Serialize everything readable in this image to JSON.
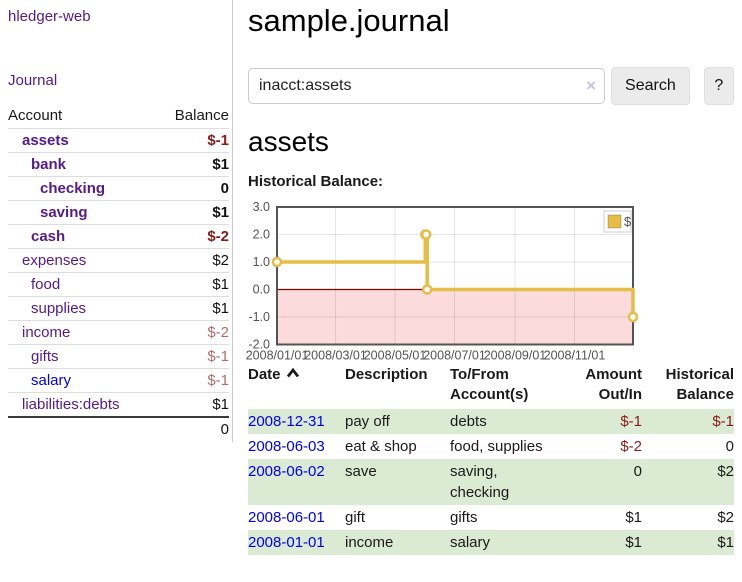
{
  "app": {
    "brand": "hledger-web"
  },
  "sidebar": {
    "journal_link": "Journal",
    "accounts": {
      "headers": [
        "Account",
        "Balance"
      ],
      "rows": [
        {
          "account": "assets",
          "indent": 1,
          "bold": true,
          "link": "purple",
          "balance": "$-1",
          "style": "neg-strong"
        },
        {
          "account": "bank",
          "indent": 2,
          "bold": true,
          "link": "purple",
          "balance": "$1",
          "style": ""
        },
        {
          "account": "checking",
          "indent": 3,
          "bold": true,
          "link": "purple",
          "balance": "0",
          "style": ""
        },
        {
          "account": "saving",
          "indent": 3,
          "bold": true,
          "link": "purple",
          "balance": "$1",
          "style": ""
        },
        {
          "account": "cash",
          "indent": 2,
          "bold": true,
          "link": "purple",
          "balance": "$-2",
          "style": "neg-strong"
        },
        {
          "account": "expenses",
          "indent": 1,
          "bold": false,
          "link": "purple",
          "balance": "$2",
          "style": ""
        },
        {
          "account": "food",
          "indent": 2,
          "bold": false,
          "link": "purple",
          "balance": "$1",
          "style": ""
        },
        {
          "account": "supplies",
          "indent": 2,
          "bold": false,
          "link": "purple",
          "balance": "$1",
          "style": ""
        },
        {
          "account": "income",
          "indent": 1,
          "bold": false,
          "link": "purple",
          "balance": "$-2",
          "style": "neg-muted"
        },
        {
          "account": "gifts",
          "indent": 2,
          "bold": false,
          "link": "purple",
          "balance": "$-1",
          "style": "neg-muted"
        },
        {
          "account": "salary",
          "indent": 2,
          "bold": false,
          "link": "blue",
          "balance": "$-1",
          "style": "neg-muted"
        },
        {
          "account": "liabilities:debts",
          "indent": 1,
          "bold": false,
          "link": "purple",
          "balance": "$1",
          "style": ""
        }
      ],
      "total": "0"
    }
  },
  "header": {
    "title": "sample.journal"
  },
  "search": {
    "value": "inacct:assets",
    "clear_icon": "×",
    "button_label": "Search",
    "help_label": "?"
  },
  "main": {
    "account_title": "assets"
  },
  "chart_data": {
    "type": "line",
    "title": "Historical Balance:",
    "series": [
      {
        "name": "$",
        "color": "#e8bd45",
        "steps": true,
        "points": [
          [
            "2008-01-01",
            1
          ],
          [
            "2008-06-01",
            2
          ],
          [
            "2008-06-02",
            2
          ],
          [
            "2008-06-03",
            0
          ],
          [
            "2008-12-31",
            -1
          ]
        ]
      }
    ],
    "xlim": [
      "2008-01-01",
      "2008-12-31"
    ],
    "ylim": [
      -2,
      3
    ],
    "x_ticks": [
      {
        "t": "2008-01-01",
        "label": "2008/01/01"
      },
      {
        "t": "2008-03-01",
        "label": "2008/03/01"
      },
      {
        "t": "2008-05-01",
        "label": "2008/05/01"
      },
      {
        "t": "2008-07-01",
        "label": "2008/07/01"
      },
      {
        "t": "2008-09-01",
        "label": "2008/09/01"
      },
      {
        "t": "2008-11-01",
        "label": "2008/11/01"
      }
    ],
    "y_ticks": [
      {
        "v": 3,
        "label": "3.0"
      },
      {
        "v": 2,
        "label": "2.0"
      },
      {
        "v": 1,
        "label": "1.0"
      },
      {
        "v": 0,
        "label": "0.0"
      },
      {
        "v": -1,
        "label": "-1.0"
      },
      {
        "v": -2,
        "label": "-2.0"
      }
    ],
    "legend": {
      "label": "$",
      "position": "top-right"
    },
    "grid": true,
    "negative_fill": "#fbdbdb",
    "zero_line_color": "#8b0000"
  },
  "register": {
    "headers": {
      "date": "Date",
      "description": "Description",
      "accounts": "To/From Account(s)",
      "amount": "Amount Out/In",
      "balance": "Historical Balance"
    },
    "sort": "ascending",
    "rows": [
      {
        "date": "2008-12-31",
        "description": "pay off",
        "accounts": "debts",
        "amount": "$-1",
        "balance": "$-1"
      },
      {
        "date": "2008-06-03",
        "description": "eat & shop",
        "accounts": "food, supplies",
        "amount": "$-2",
        "balance": "0"
      },
      {
        "date": "2008-06-02",
        "description": "save",
        "accounts": "saving, checking",
        "amount": "0",
        "balance": "$2"
      },
      {
        "date": "2008-06-01",
        "description": "gift",
        "accounts": "gifts",
        "amount": "$1",
        "balance": "$2"
      },
      {
        "date": "2008-01-01",
        "description": "income",
        "accounts": "salary",
        "amount": "$1",
        "balance": "$1"
      }
    ]
  },
  "colors": {
    "link_purple": "#551a8b",
    "link_blue": "#0000ee",
    "negative_strong": "#8b1a1a",
    "negative_muted": "#b26d6d",
    "row_stripe_green": "#daead3",
    "chart_series_gold": "#e8bd45",
    "chart_negative_fill": "#fbdbdb",
    "chart_zero_line": "#8b0000",
    "chart_border_gray": "#545454"
  }
}
